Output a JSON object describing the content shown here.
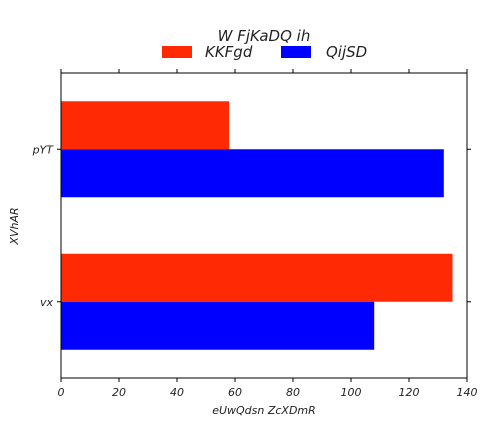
{
  "chart_data": {
    "type": "bar",
    "orientation": "horizontal",
    "title": "W FjKaDQ ih",
    "xlabel": "eUwQdsn ZcXDmR",
    "ylabel": "XVhAR",
    "categories": [
      "vx",
      "pYT"
    ],
    "series": [
      {
        "name": "KKFgd",
        "color": "#ff2a04",
        "values": [
          135,
          58
        ]
      },
      {
        "name": "QijSD",
        "color": "#0000ff",
        "values": [
          108,
          132
        ]
      }
    ],
    "xlim": [
      0,
      140
    ],
    "xticks": [
      "0",
      "20",
      "40",
      "60",
      "80",
      "100",
      "120",
      "140"
    ],
    "grid": false,
    "legend_position": "top-center"
  }
}
